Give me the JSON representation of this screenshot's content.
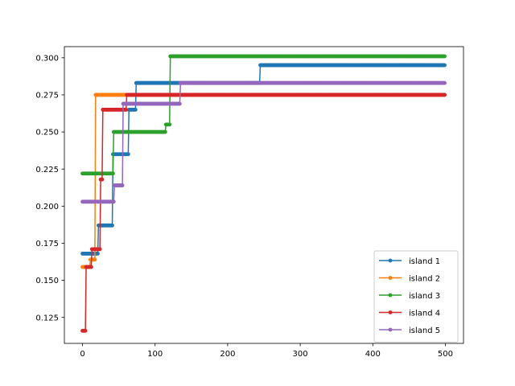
{
  "chart_data": {
    "type": "line",
    "title": "",
    "xlabel": "",
    "ylabel": "",
    "xlim": [
      -25,
      525
    ],
    "ylim": [
      0.1075,
      0.3075
    ],
    "xticks": [
      0,
      100,
      200,
      300,
      400,
      500
    ],
    "yticks": [
      0.125,
      0.15,
      0.175,
      0.2,
      0.225,
      0.25,
      0.275,
      0.3
    ],
    "ytick_labels": [
      "0.125",
      "0.150",
      "0.175",
      "0.200",
      "0.225",
      "0.250",
      "0.275",
      "0.300"
    ],
    "grid": false,
    "legend": "lower right",
    "marker": "dot",
    "x_range": [
      0,
      499
    ],
    "series": [
      {
        "name": "island 1",
        "color": "#1f77b4",
        "steps": [
          [
            0,
            0.168
          ],
          [
            22,
            0.187
          ],
          [
            42,
            0.235
          ],
          [
            64,
            0.265
          ],
          [
            74,
            0.283
          ],
          [
            245,
            0.295
          ]
        ]
      },
      {
        "name": "island 2",
        "color": "#ff7f0e",
        "steps": [
          [
            0,
            0.159
          ],
          [
            11,
            0.164
          ],
          [
            18,
            0.275
          ]
        ]
      },
      {
        "name": "island 3",
        "color": "#2ca02c",
        "steps": [
          [
            0,
            0.222
          ],
          [
            43,
            0.25
          ],
          [
            115,
            0.255
          ],
          [
            121,
            0.301
          ]
        ]
      },
      {
        "name": "island 4",
        "color": "#d62728",
        "steps": [
          [
            0,
            0.116
          ],
          [
            5,
            0.159
          ],
          [
            13,
            0.171
          ],
          [
            25,
            0.218
          ],
          [
            28,
            0.265
          ],
          [
            61,
            0.275
          ]
        ]
      },
      {
        "name": "island 5",
        "color": "#9467bd",
        "steps": [
          [
            0,
            0.203
          ],
          [
            44,
            0.214
          ],
          [
            56,
            0.269
          ],
          [
            135,
            0.283
          ]
        ]
      }
    ]
  }
}
